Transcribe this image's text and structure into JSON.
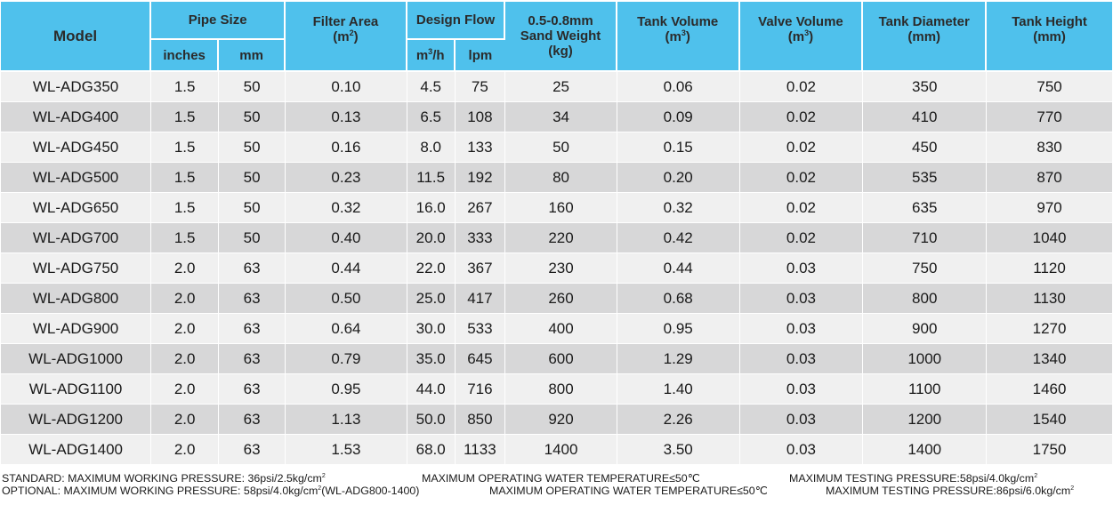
{
  "table": {
    "headers": {
      "model": "Model",
      "pipe_size": "Pipe Size",
      "pipe_inches": "inches",
      "pipe_mm": "mm",
      "filter_area": "Filter Area",
      "filter_area_unit": "(m",
      "filter_area_unit_exp": "2",
      "filter_area_unit_close": ")",
      "design_flow": "Design Flow",
      "flow_m3h": "m",
      "flow_m3h_exp": "3",
      "flow_m3h_rest": "/h",
      "flow_lpm": "lpm",
      "sand_line1": "0.5-0.8mm",
      "sand_line2": "Sand Weight",
      "sand_line3": "(kg)",
      "tank_volume": "Tank Volume",
      "tank_volume_unit": "(m",
      "tank_volume_unit_exp": "3",
      "tank_volume_unit_close": ")",
      "valve_volume": "Valve Volume",
      "valve_volume_unit": "(m",
      "valve_volume_unit_exp": "3",
      "valve_volume_unit_close": ")",
      "tank_diameter": "Tank Diameter",
      "tank_diameter_unit": "(mm)",
      "tank_height": "Tank Height",
      "tank_height_unit": "(mm)"
    },
    "rows": [
      [
        "WL-ADG350",
        "1.5",
        "50",
        "0.10",
        "4.5",
        "75",
        "25",
        "0.06",
        "0.02",
        "350",
        "750"
      ],
      [
        "WL-ADG400",
        "1.5",
        "50",
        "0.13",
        "6.5",
        "108",
        "34",
        "0.09",
        "0.02",
        "410",
        "770"
      ],
      [
        "WL-ADG450",
        "1.5",
        "50",
        "0.16",
        "8.0",
        "133",
        "50",
        "0.15",
        "0.02",
        "450",
        "830"
      ],
      [
        "WL-ADG500",
        "1.5",
        "50",
        "0.23",
        "11.5",
        "192",
        "80",
        "0.20",
        "0.02",
        "535",
        "870"
      ],
      [
        "WL-ADG650",
        "1.5",
        "50",
        "0.32",
        "16.0",
        "267",
        "160",
        "0.32",
        "0.02",
        "635",
        "970"
      ],
      [
        "WL-ADG700",
        "1.5",
        "50",
        "0.40",
        "20.0",
        "333",
        "220",
        "0.42",
        "0.02",
        "710",
        "1040"
      ],
      [
        "WL-ADG750",
        "2.0",
        "63",
        "0.44",
        "22.0",
        "367",
        "230",
        "0.44",
        "0.03",
        "750",
        "1120"
      ],
      [
        "WL-ADG800",
        "2.0",
        "63",
        "0.50",
        "25.0",
        "417",
        "260",
        "0.68",
        "0.03",
        "800",
        "1130"
      ],
      [
        "WL-ADG900",
        "2.0",
        "63",
        "0.64",
        "30.0",
        "533",
        "400",
        "0.95",
        "0.03",
        "900",
        "1270"
      ],
      [
        "WL-ADG1000",
        "2.0",
        "63",
        "0.79",
        "35.0",
        "645",
        "600",
        "1.29",
        "0.03",
        "1000",
        "1340"
      ],
      [
        "WL-ADG1100",
        "2.0",
        "63",
        "0.95",
        "44.0",
        "716",
        "800",
        "1.40",
        "0.03",
        "1100",
        "1460"
      ],
      [
        "WL-ADG1200",
        "2.0",
        "63",
        "1.13",
        "50.0",
        "850",
        "920",
        "2.26",
        "0.03",
        "1200",
        "1540"
      ],
      [
        "WL-ADG1400",
        "2.0",
        "63",
        "1.53",
        "68.0",
        "1133",
        "1400",
        "3.50",
        "0.03",
        "1400",
        "1750"
      ]
    ]
  },
  "notes": {
    "standard_pressure": "STANDARD: MAXIMUM WORKING PRESSURE: 36psi/2.5kg/cm",
    "standard_pressure_exp": "2",
    "standard_temp": "MAXIMUM OPERATING WATER TEMPERATURE≤50℃",
    "standard_test": "MAXIMUM TESTING PRESSURE:58psi/4.0kg/cm",
    "standard_test_exp": "2",
    "optional_pressure": "OPTIONAL: MAXIMUM WORKING PRESSURE: 58psi/4.0kg/cm",
    "optional_pressure_exp": "2",
    "optional_pressure_note": "(WL-ADG800-1400)",
    "optional_temp": "MAXIMUM OPERATING WATER TEMPERATURE≤50℃",
    "optional_test": "MAXIMUM TESTING PRESSURE:86psi/6.0kg/cm",
    "optional_test_exp": "2"
  }
}
